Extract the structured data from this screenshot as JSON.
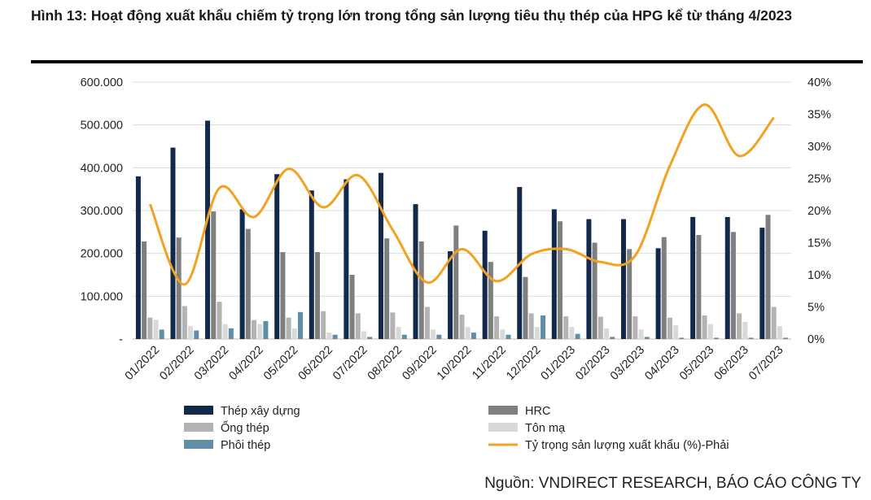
{
  "figure_title": "Hình 13: Hoạt động xuất khẩu chiếm tỷ trọng lớn trong tổng sản lượng tiêu thụ thép của HPG kể từ tháng 4/2023",
  "source": "Nguồn: VNDIRECT RESEARCH, BÁO CÁO CÔNG TY",
  "colors": {
    "thep_xay_dung": "#13294b",
    "hrc": "#7f7f7f",
    "ong_thep": "#b3b3b3",
    "ton_ma": "#d9d9d9",
    "phoi_thep": "#5f8ea6",
    "export_line": "#f4a020"
  },
  "chart_data": {
    "type": "bar",
    "categories": [
      "01/2022",
      "02/2022",
      "03/2022",
      "04/2022",
      "05/2022",
      "06/2022",
      "07/2022",
      "08/2022",
      "09/2022",
      "10/2022",
      "11/2022",
      "12/2022",
      "01/2023",
      "02/2023",
      "03/2023",
      "04/2023",
      "05/2023",
      "06/2023",
      "07/2023"
    ],
    "y_left": {
      "min": 0,
      "max": 600000,
      "ticks": [
        0,
        100000,
        200000,
        300000,
        400000,
        500000,
        600000
      ],
      "tick_labels": [
        "-",
        "100.000",
        "200.000",
        "300.000",
        "400.000",
        "500.000",
        "600.000"
      ]
    },
    "y_right": {
      "min": 0,
      "max": 40,
      "ticks": [
        0,
        5,
        10,
        15,
        20,
        25,
        30,
        35,
        40
      ],
      "tick_labels": [
        "0%",
        "5%",
        "10%",
        "15%",
        "20%",
        "25%",
        "30%",
        "35%",
        "40%"
      ]
    },
    "grid": true,
    "legend_position": "bottom",
    "series": [
      {
        "name": "Thép xây dựng",
        "kind": "bar",
        "axis": "left",
        "values": [
          380000,
          447000,
          510000,
          303000,
          385000,
          347000,
          373000,
          388000,
          315000,
          205000,
          253000,
          355000,
          303000,
          280000,
          280000,
          212000,
          285000,
          285000,
          260000
        ]
      },
      {
        "name": "HRC",
        "kind": "bar",
        "axis": "left",
        "values": [
          228000,
          237000,
          298000,
          257000,
          203000,
          203000,
          150000,
          235000,
          228000,
          265000,
          180000,
          145000,
          275000,
          225000,
          210000,
          238000,
          243000,
          250000,
          290000
        ]
      },
      {
        "name": "Ống thép",
        "kind": "bar",
        "axis": "left",
        "values": [
          50000,
          77000,
          87000,
          44000,
          50000,
          65000,
          60000,
          62000,
          75000,
          57000,
          53000,
          60000,
          53000,
          52000,
          53000,
          50000,
          55000,
          60000,
          75000
        ]
      },
      {
        "name": "Tôn mạ",
        "kind": "bar",
        "axis": "left",
        "values": [
          45000,
          30000,
          35000,
          35000,
          25000,
          15000,
          18000,
          28000,
          22000,
          28000,
          22000,
          28000,
          28000,
          25000,
          22000,
          32000,
          35000,
          40000,
          30000
        ]
      },
      {
        "name": "Phôi thép",
        "kind": "bar",
        "axis": "left",
        "values": [
          22000,
          20000,
          25000,
          42000,
          63000,
          10000,
          5000,
          10000,
          10000,
          15000,
          10000,
          55000,
          12000,
          5000,
          5000,
          3000,
          3000,
          3000,
          3000
        ]
      },
      {
        "name": "Tỷ trọng sản lượng xuất khẩu (%)-Phải",
        "kind": "line",
        "axis": "right",
        "values": [
          21,
          8.5,
          23.5,
          19,
          26.5,
          20.5,
          25.5,
          17,
          8.8,
          14,
          9,
          13.2,
          14,
          12,
          13,
          27,
          36.5,
          28.5,
          34.5
        ]
      }
    ]
  }
}
